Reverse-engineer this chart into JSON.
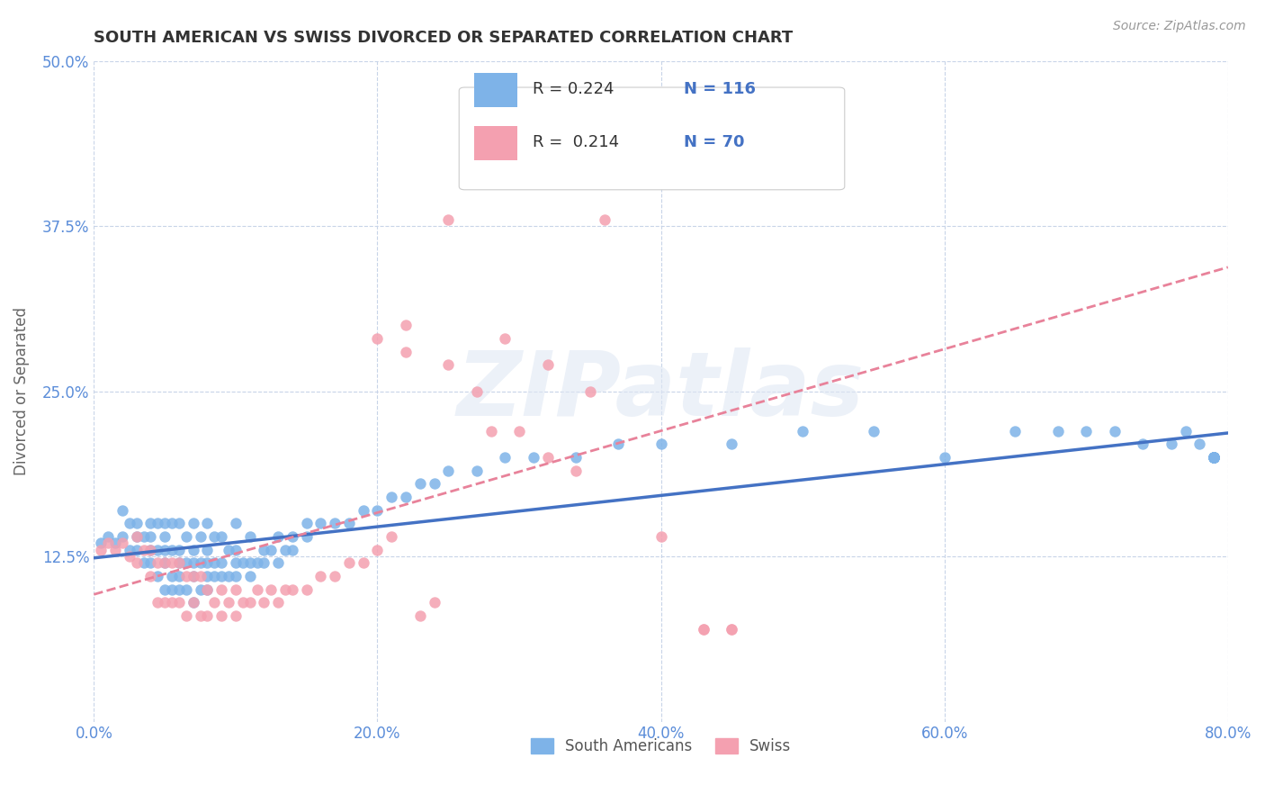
{
  "title": "SOUTH AMERICAN VS SWISS DIVORCED OR SEPARATED CORRELATION CHART",
  "source": "Source: ZipAtlas.com",
  "ylabel": "Divorced or Separated",
  "legend_labels": [
    "South Americans",
    "Swiss"
  ],
  "r_values": [
    0.224,
    0.214
  ],
  "n_values": [
    116,
    70
  ],
  "xlim": [
    0.0,
    0.8
  ],
  "ylim": [
    0.0,
    0.5
  ],
  "xticks": [
    0.0,
    0.2,
    0.4,
    0.6,
    0.8
  ],
  "yticks": [
    0.0,
    0.125,
    0.25,
    0.375,
    0.5
  ],
  "xticklabels": [
    "0.0%",
    "20.0%",
    "40.0%",
    "60.0%",
    "80.0%"
  ],
  "yticklabels": [
    "",
    "12.5%",
    "25.0%",
    "37.5%",
    "50.0%"
  ],
  "blue_color": "#7EB3E8",
  "pink_color": "#F4A0B0",
  "blue_line_color": "#4472C4",
  "pink_line_color": "#E8829A",
  "background_color": "#FFFFFF",
  "grid_color": "#C8D4E8",
  "title_color": "#333333",
  "tick_color": "#5B8DD9",
  "blue_scatter_x": [
    0.005,
    0.01,
    0.015,
    0.02,
    0.02,
    0.025,
    0.025,
    0.03,
    0.03,
    0.03,
    0.035,
    0.035,
    0.04,
    0.04,
    0.04,
    0.04,
    0.045,
    0.045,
    0.045,
    0.05,
    0.05,
    0.05,
    0.05,
    0.05,
    0.055,
    0.055,
    0.055,
    0.055,
    0.06,
    0.06,
    0.06,
    0.06,
    0.06,
    0.065,
    0.065,
    0.065,
    0.07,
    0.07,
    0.07,
    0.07,
    0.07,
    0.075,
    0.075,
    0.075,
    0.08,
    0.08,
    0.08,
    0.08,
    0.08,
    0.085,
    0.085,
    0.085,
    0.09,
    0.09,
    0.09,
    0.095,
    0.095,
    0.1,
    0.1,
    0.1,
    0.1,
    0.105,
    0.11,
    0.11,
    0.11,
    0.115,
    0.12,
    0.12,
    0.125,
    0.13,
    0.13,
    0.135,
    0.14,
    0.14,
    0.15,
    0.15,
    0.16,
    0.17,
    0.18,
    0.19,
    0.2,
    0.21,
    0.22,
    0.23,
    0.24,
    0.25,
    0.27,
    0.29,
    0.31,
    0.34,
    0.37,
    0.4,
    0.45,
    0.5,
    0.55,
    0.6,
    0.65,
    0.68,
    0.7,
    0.72,
    0.74,
    0.76,
    0.77,
    0.78,
    0.79,
    0.79,
    0.79,
    0.79,
    0.79,
    0.79,
    0.79,
    0.79,
    0.79,
    0.79,
    0.79,
    0.79
  ],
  "blue_scatter_y": [
    0.135,
    0.14,
    0.135,
    0.14,
    0.16,
    0.13,
    0.15,
    0.13,
    0.14,
    0.15,
    0.12,
    0.14,
    0.12,
    0.13,
    0.14,
    0.15,
    0.11,
    0.13,
    0.15,
    0.1,
    0.12,
    0.13,
    0.14,
    0.15,
    0.1,
    0.11,
    0.13,
    0.15,
    0.1,
    0.11,
    0.12,
    0.13,
    0.15,
    0.1,
    0.12,
    0.14,
    0.09,
    0.11,
    0.12,
    0.13,
    0.15,
    0.1,
    0.12,
    0.14,
    0.1,
    0.11,
    0.12,
    0.13,
    0.15,
    0.11,
    0.12,
    0.14,
    0.11,
    0.12,
    0.14,
    0.11,
    0.13,
    0.11,
    0.12,
    0.13,
    0.15,
    0.12,
    0.11,
    0.12,
    0.14,
    0.12,
    0.12,
    0.13,
    0.13,
    0.12,
    0.14,
    0.13,
    0.13,
    0.14,
    0.14,
    0.15,
    0.15,
    0.15,
    0.15,
    0.16,
    0.16,
    0.17,
    0.17,
    0.18,
    0.18,
    0.19,
    0.19,
    0.2,
    0.2,
    0.2,
    0.21,
    0.21,
    0.21,
    0.22,
    0.22,
    0.2,
    0.22,
    0.22,
    0.22,
    0.22,
    0.21,
    0.21,
    0.22,
    0.21,
    0.2,
    0.2,
    0.2,
    0.2,
    0.2,
    0.2,
    0.2,
    0.2,
    0.2,
    0.2,
    0.2,
    0.2
  ],
  "pink_scatter_x": [
    0.005,
    0.01,
    0.015,
    0.02,
    0.025,
    0.03,
    0.03,
    0.035,
    0.04,
    0.04,
    0.045,
    0.045,
    0.05,
    0.05,
    0.055,
    0.055,
    0.06,
    0.06,
    0.065,
    0.065,
    0.07,
    0.07,
    0.075,
    0.075,
    0.08,
    0.08,
    0.085,
    0.09,
    0.09,
    0.095,
    0.1,
    0.1,
    0.105,
    0.11,
    0.115,
    0.12,
    0.125,
    0.13,
    0.135,
    0.14,
    0.15,
    0.16,
    0.17,
    0.18,
    0.19,
    0.2,
    0.21,
    0.22,
    0.23,
    0.24,
    0.25,
    0.27,
    0.28,
    0.3,
    0.32,
    0.34,
    0.36,
    0.38,
    0.4,
    0.43,
    0.45,
    0.2,
    0.22,
    0.25,
    0.27,
    0.29,
    0.32,
    0.35,
    0.43,
    0.45
  ],
  "pink_scatter_y": [
    0.13,
    0.135,
    0.13,
    0.135,
    0.125,
    0.12,
    0.14,
    0.13,
    0.11,
    0.13,
    0.09,
    0.12,
    0.09,
    0.12,
    0.09,
    0.12,
    0.09,
    0.12,
    0.08,
    0.11,
    0.09,
    0.11,
    0.08,
    0.11,
    0.08,
    0.1,
    0.09,
    0.08,
    0.1,
    0.09,
    0.08,
    0.1,
    0.09,
    0.09,
    0.1,
    0.09,
    0.1,
    0.09,
    0.1,
    0.1,
    0.1,
    0.11,
    0.11,
    0.12,
    0.12,
    0.13,
    0.14,
    0.3,
    0.08,
    0.09,
    0.27,
    0.25,
    0.22,
    0.22,
    0.2,
    0.19,
    0.38,
    0.42,
    0.14,
    0.07,
    0.07,
    0.29,
    0.28,
    0.38,
    0.42,
    0.29,
    0.27,
    0.25,
    0.07,
    0.07
  ]
}
